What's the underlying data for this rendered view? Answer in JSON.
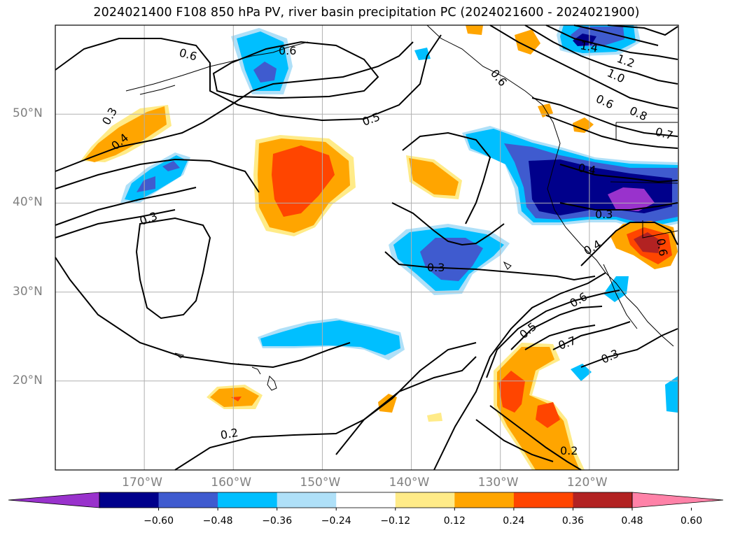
{
  "title": "2024021400 F108 850 hPa PV, river basin precipitation PC (2024021600 - 2024021900)",
  "lat_labels": [
    {
      "lat": 50,
      "text": "50°N"
    },
    {
      "lat": 40,
      "text": "40°N"
    },
    {
      "lat": 30,
      "text": "30°N"
    },
    {
      "lat": 20,
      "text": "20°N"
    }
  ],
  "lon_labels": [
    {
      "lon": -170,
      "text": "170°W"
    },
    {
      "lon": -160,
      "text": "160°W"
    },
    {
      "lon": -150,
      "text": "150°W"
    },
    {
      "lon": -140,
      "text": "140°W"
    },
    {
      "lon": -130,
      "text": "130°W"
    },
    {
      "lon": -120,
      "text": "120°W"
    }
  ],
  "map_extent": {
    "lon_min": -180,
    "lon_max": -110,
    "lat_min": 10,
    "lat_max": 60
  },
  "contour_labels": [
    {
      "text": "0.6"
    },
    {
      "text": "0.3"
    },
    {
      "text": "0.4"
    },
    {
      "text": "0.5"
    },
    {
      "text": "0.3"
    },
    {
      "text": "0.3"
    },
    {
      "text": "0.2"
    },
    {
      "text": "0.6"
    },
    {
      "text": "1.4"
    },
    {
      "text": "1.2"
    },
    {
      "text": "1.0"
    },
    {
      "text": "0.6"
    },
    {
      "text": "0.8"
    },
    {
      "text": "0.7"
    },
    {
      "text": "0.4"
    },
    {
      "text": "0.3"
    },
    {
      "text": "0.4"
    },
    {
      "text": "0.6"
    },
    {
      "text": "0.5"
    },
    {
      "text": "0.7"
    },
    {
      "text": "0.3"
    },
    {
      "text": "0.2"
    },
    {
      "text": "0.6"
    },
    {
      "text": "0.6"
    }
  ],
  "colorbar": {
    "ticks": [
      "−0.60",
      "−0.48",
      "−0.36",
      "−0.24",
      "−0.12",
      "0.12",
      "0.24",
      "0.36",
      "0.48",
      "0.60"
    ],
    "colors": [
      "#9932cc",
      "#00008b",
      "#3f5bcf",
      "#00bfff",
      "#afe0f8",
      "#ffffff",
      "#ffeb88",
      "#ffa500",
      "#ff4500",
      "#b22222",
      "#ff82a8"
    ]
  }
}
